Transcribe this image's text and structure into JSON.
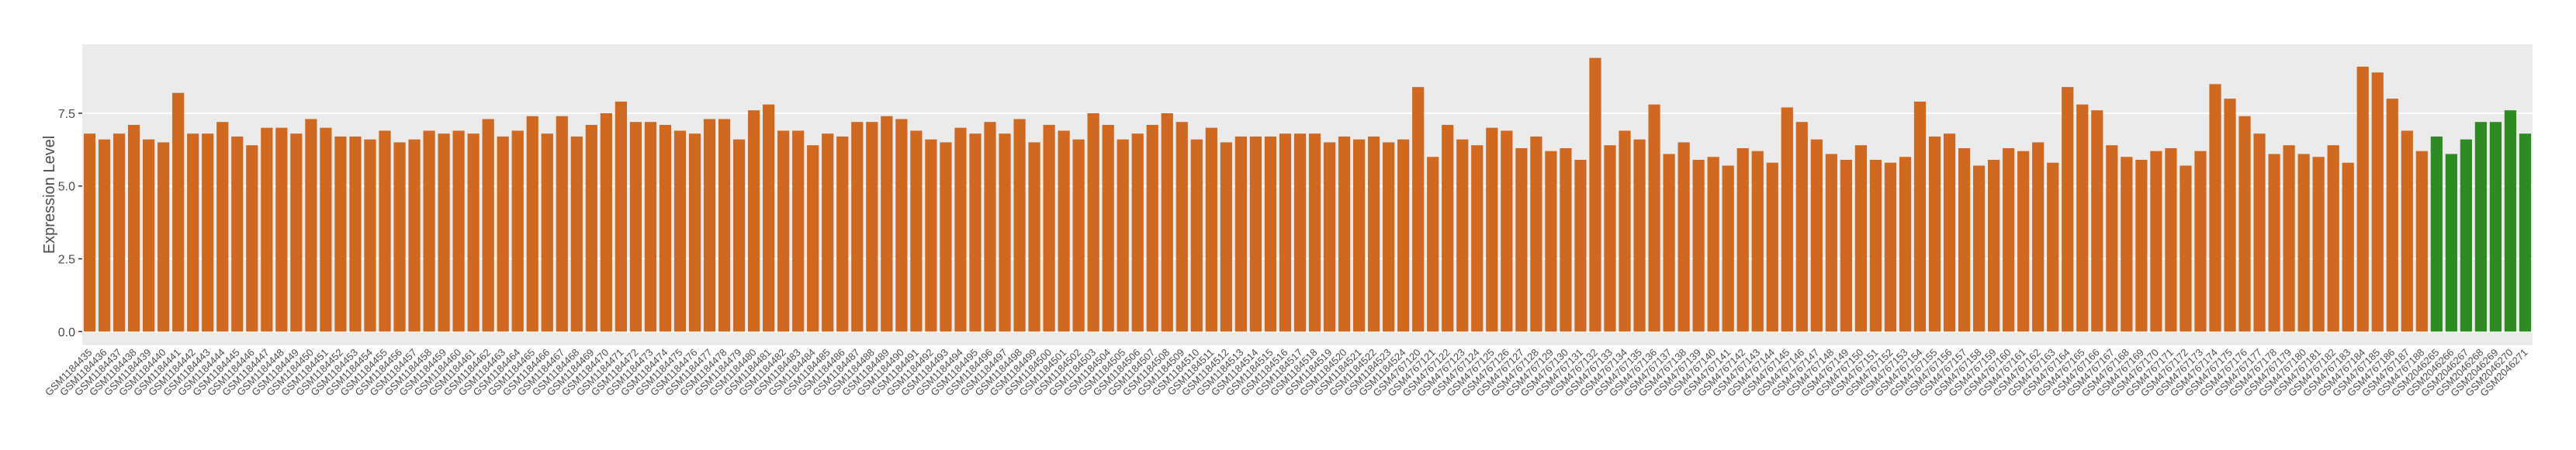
{
  "chart_data": {
    "type": "bar",
    "y_label": "Expression Level",
    "categories": [
      "GSM1184435",
      "GSM1184436",
      "GSM1184437",
      "GSM1184438",
      "GSM1184439",
      "GSM1184440",
      "GSM1184441",
      "GSM1184442",
      "GSM1184443",
      "GSM1184444",
      "GSM1184445",
      "GSM1184446",
      "GSM1184447",
      "GSM1184448",
      "GSM1184449",
      "GSM1184450",
      "GSM1184451",
      "GSM1184452",
      "GSM1184453",
      "GSM1184454",
      "GSM1184455",
      "GSM1184456",
      "GSM1184457",
      "GSM1184458",
      "GSM1184459",
      "GSM1184460",
      "GSM1184461",
      "GSM1184462",
      "GSM1184463",
      "GSM1184464",
      "GSM1184465",
      "GSM1184466",
      "GSM1184467",
      "GSM1184468",
      "GSM1184469",
      "GSM1184470",
      "GSM1184471",
      "GSM1184472",
      "GSM1184473",
      "GSM1184474",
      "GSM1184475",
      "GSM1184476",
      "GSM1184477",
      "GSM1184478",
      "GSM1184479",
      "GSM1184480",
      "GSM1184481",
      "GSM1184482",
      "GSM1184483",
      "GSM1184484",
      "GSM1184485",
      "GSM1184486",
      "GSM1184487",
      "GSM1184488",
      "GSM1184489",
      "GSM1184490",
      "GSM1184491",
      "GSM1184492",
      "GSM1184493",
      "GSM1184494",
      "GSM1184495",
      "GSM1184496",
      "GSM1184497",
      "GSM1184498",
      "GSM1184499",
      "GSM1184500",
      "GSM1184501",
      "GSM1184502",
      "GSM1184503",
      "GSM1184504",
      "GSM1184505",
      "GSM1184506",
      "GSM1184507",
      "GSM1184508",
      "GSM1184509",
      "GSM1184510",
      "GSM1184511",
      "GSM1184512",
      "GSM1184513",
      "GSM1184514",
      "GSM1184515",
      "GSM1184516",
      "GSM1184517",
      "GSM1184518",
      "GSM1184519",
      "GSM1184520",
      "GSM1184521",
      "GSM1184522",
      "GSM1184523",
      "GSM1184524",
      "GSM4767120",
      "GSM4767121",
      "GSM4767122",
      "GSM4767123",
      "GSM4767124",
      "GSM4767125",
      "GSM4767126",
      "GSM4767127",
      "GSM4767128",
      "GSM4767129",
      "GSM4767130",
      "GSM4767131",
      "GSM4767132",
      "GSM4767133",
      "GSM4767134",
      "GSM4767135",
      "GSM4767136",
      "GSM4767137",
      "GSM4767138",
      "GSM4767139",
      "GSM4767140",
      "GSM4767141",
      "GSM4767142",
      "GSM4767143",
      "GSM4767144",
      "GSM4767145",
      "GSM4767146",
      "GSM4767147",
      "GSM4767148",
      "GSM4767149",
      "GSM4767150",
      "GSM4767151",
      "GSM4767152",
      "GSM4767153",
      "GSM4767154",
      "GSM4767155",
      "GSM4767156",
      "GSM4767157",
      "GSM4767158",
      "GSM4767159",
      "GSM4767160",
      "GSM4767161",
      "GSM4767162",
      "GSM4767163",
      "GSM4767164",
      "GSM4767165",
      "GSM4767166",
      "GSM4767167",
      "GSM4767168",
      "GSM4767169",
      "GSM4767170",
      "GSM4767171",
      "GSM4767172",
      "GSM4767173",
      "GSM4767174",
      "GSM4767175",
      "GSM4767176",
      "GSM4767177",
      "GSM4767178",
      "GSM4767179",
      "GSM4767180",
      "GSM4767181",
      "GSM4767182",
      "GSM4767183",
      "GSM4767184",
      "GSM4767185",
      "GSM4767186",
      "GSM4767187",
      "GSM4767188",
      "GSM2046265",
      "GSM2046266",
      "GSM2046267",
      "GSM2046268",
      "GSM2046269",
      "GSM2046270",
      "GSM2046271"
    ],
    "values": [
      6.8,
      6.6,
      6.8,
      7.1,
      6.6,
      6.5,
      8.2,
      6.8,
      6.8,
      7.2,
      6.7,
      6.4,
      7.0,
      7.0,
      6.8,
      7.3,
      7.0,
      6.7,
      6.7,
      6.6,
      6.9,
      6.5,
      6.6,
      6.9,
      6.8,
      6.9,
      6.8,
      7.3,
      6.7,
      6.9,
      7.4,
      6.8,
      7.4,
      6.7,
      7.1,
      7.5,
      7.9,
      7.2,
      7.2,
      7.1,
      6.9,
      6.8,
      7.3,
      7.3,
      6.6,
      7.6,
      7.8,
      6.9,
      6.9,
      6.4,
      6.8,
      6.7,
      7.2,
      7.2,
      7.4,
      7.3,
      6.9,
      6.6,
      6.5,
      7.0,
      6.8,
      7.2,
      6.8,
      7.3,
      6.5,
      7.1,
      6.9,
      6.6,
      7.5,
      7.1,
      6.6,
      6.8,
      7.1,
      7.5,
      7.2,
      6.6,
      7.0,
      6.5,
      6.7,
      6.7,
      6.7,
      6.8,
      6.8,
      6.8,
      6.5,
      6.7,
      6.6,
      6.7,
      6.5,
      6.6,
      8.4,
      6.0,
      7.1,
      6.6,
      6.4,
      7.0,
      6.9,
      6.3,
      6.7,
      6.2,
      6.3,
      5.9,
      9.4,
      6.4,
      6.9,
      6.6,
      7.8,
      6.1,
      6.5,
      5.9,
      6.0,
      5.7,
      6.3,
      6.2,
      5.8,
      7.7,
      7.2,
      6.6,
      6.1,
      5.9,
      6.4,
      5.9,
      5.8,
      6.0,
      7.9,
      6.7,
      6.8,
      6.3,
      5.7,
      5.9,
      6.3,
      6.2,
      6.5,
      5.8,
      8.4,
      7.8,
      7.6,
      6.4,
      6.0,
      5.9,
      6.2,
      6.3,
      5.7,
      6.2,
      8.5,
      8.0,
      7.4,
      6.8,
      6.1,
      6.4,
      6.1,
      6.0,
      6.4,
      5.8,
      9.1,
      8.9,
      8.0,
      6.9,
      6.2,
      6.7,
      6.1,
      6.6,
      7.2,
      7.2,
      7.6,
      6.8
    ],
    "bar_colors": [
      "#d0691f",
      "#d0691f",
      "#d0691f",
      "#d0691f",
      "#d0691f",
      "#d0691f",
      "#d0691f",
      "#d0691f",
      "#d0691f",
      "#d0691f",
      "#d0691f",
      "#d0691f",
      "#d0691f",
      "#d0691f",
      "#d0691f",
      "#d0691f",
      "#d0691f",
      "#d0691f",
      "#d0691f",
      "#d0691f",
      "#d0691f",
      "#d0691f",
      "#d0691f",
      "#d0691f",
      "#d0691f",
      "#d0691f",
      "#d0691f",
      "#d0691f",
      "#d0691f",
      "#d0691f",
      "#d0691f",
      "#d0691f",
      "#d0691f",
      "#d0691f",
      "#d0691f",
      "#d0691f",
      "#d0691f",
      "#d0691f",
      "#d0691f",
      "#d0691f",
      "#d0691f",
      "#d0691f",
      "#d0691f",
      "#d0691f",
      "#d0691f",
      "#d0691f",
      "#d0691f",
      "#d0691f",
      "#d0691f",
      "#d0691f",
      "#d0691f",
      "#d0691f",
      "#d0691f",
      "#d0691f",
      "#d0691f",
      "#d0691f",
      "#d0691f",
      "#d0691f",
      "#d0691f",
      "#d0691f",
      "#d0691f",
      "#d0691f",
      "#d0691f",
      "#d0691f",
      "#d0691f",
      "#d0691f",
      "#d0691f",
      "#d0691f",
      "#d0691f",
      "#d0691f",
      "#d0691f",
      "#d0691f",
      "#d0691f",
      "#d0691f",
      "#d0691f",
      "#d0691f",
      "#d0691f",
      "#d0691f",
      "#d0691f",
      "#d0691f",
      "#d0691f",
      "#d0691f",
      "#d0691f",
      "#d0691f",
      "#d0691f",
      "#d0691f",
      "#d0691f",
      "#d0691f",
      "#d0691f",
      "#d0691f",
      "#d0691f",
      "#d0691f",
      "#d0691f",
      "#d0691f",
      "#d0691f",
      "#d0691f",
      "#d0691f",
      "#d0691f",
      "#d0691f",
      "#d0691f",
      "#d0691f",
      "#d0691f",
      "#d0691f",
      "#d0691f",
      "#d0691f",
      "#d0691f",
      "#d0691f",
      "#d0691f",
      "#d0691f",
      "#d0691f",
      "#d0691f",
      "#d0691f",
      "#d0691f",
      "#d0691f",
      "#d0691f",
      "#d0691f",
      "#d0691f",
      "#d0691f",
      "#d0691f",
      "#d0691f",
      "#d0691f",
      "#d0691f",
      "#d0691f",
      "#d0691f",
      "#d0691f",
      "#d0691f",
      "#d0691f",
      "#d0691f",
      "#d0691f",
      "#d0691f",
      "#d0691f",
      "#d0691f",
      "#d0691f",
      "#d0691f",
      "#d0691f",
      "#d0691f",
      "#d0691f",
      "#d0691f",
      "#d0691f",
      "#d0691f",
      "#d0691f",
      "#d0691f",
      "#d0691f",
      "#d0691f",
      "#d0691f",
      "#d0691f",
      "#d0691f",
      "#d0691f",
      "#d0691f",
      "#d0691f",
      "#d0691f",
      "#d0691f",
      "#d0691f",
      "#d0691f",
      "#d0691f",
      "#d0691f",
      "#d0691f",
      "#d0691f",
      "#d0691f",
      "#2e8b22",
      "#2e8b22",
      "#2e8b22",
      "#2e8b22",
      "#2e8b22",
      "#2e8b22",
      "#2e8b22"
    ],
    "ylim": [
      -0.47,
      9.87
    ],
    "yticks": [
      {
        "value": 0,
        "label": "0.0"
      },
      {
        "value": 2.5,
        "label": "2.5"
      },
      {
        "value": 5,
        "label": "5.0"
      },
      {
        "value": 7.5,
        "label": "7.5"
      }
    ],
    "grid": true
  }
}
